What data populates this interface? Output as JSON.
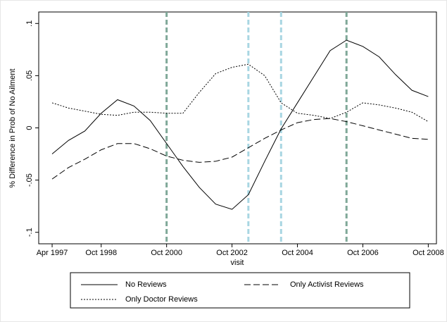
{
  "chart_data": {
    "type": "line",
    "x_label": "visit",
    "y_label": "% Difference in Prob of No Ailment",
    "xlim": [
      1996.84,
      2009.0
    ],
    "ylim": [
      -0.111,
      0.111
    ],
    "xticks": [
      {
        "value": 1997.25,
        "label": "Apr 1997"
      },
      {
        "value": 1998.75,
        "label": "Oct 1998"
      },
      {
        "value": 2000.75,
        "label": "Oct 2000"
      },
      {
        "value": 2002.75,
        "label": "Oct 2002"
      },
      {
        "value": 2004.75,
        "label": "Oct 2004"
      },
      {
        "value": 2006.75,
        "label": "Oct 2006"
      },
      {
        "value": 2008.75,
        "label": "Oct 2008"
      }
    ],
    "yticks": [
      {
        "value": -0.1,
        "label": "-.1"
      },
      {
        "value": -0.05,
        "label": "-.05"
      },
      0,
      {
        "value": 0.05,
        "label": ".05"
      },
      {
        "value": 0.1,
        "label": ".1"
      }
    ],
    "vlines": [
      {
        "x": 2000.75,
        "color": "#7fa898"
      },
      {
        "x": 2003.25,
        "color": "#a8d6e2"
      },
      {
        "x": 2004.25,
        "color": "#a8d6e2"
      },
      {
        "x": 2006.25,
        "color": "#7fa898"
      }
    ],
    "x": [
      1997.25,
      1997.75,
      1998.25,
      1998.75,
      1999.25,
      1999.75,
      2000.25,
      2000.75,
      2001.25,
      2001.75,
      2002.25,
      2002.75,
      2003.25,
      2003.75,
      2004.25,
      2004.75,
      2005.25,
      2005.75,
      2006.25,
      2006.75,
      2007.25,
      2007.75,
      2008.25,
      2008.75
    ],
    "series": [
      {
        "name": "No Reviews",
        "color": "#000000",
        "line_style": "solid",
        "values": [
          -0.025,
          -0.012,
          -0.003,
          0.014,
          0.027,
          0.021,
          0.007,
          -0.015,
          -0.037,
          -0.057,
          -0.073,
          -0.078,
          -0.064,
          -0.032,
          -0.001,
          0.024,
          0.049,
          0.074,
          0.084,
          0.078,
          0.068,
          0.051,
          0.036,
          0.03
        ]
      },
      {
        "name": "Only Activist Reviews",
        "color": "#000000",
        "line_style": "dashed",
        "values": [
          -0.049,
          -0.038,
          -0.03,
          -0.021,
          -0.015,
          -0.015,
          -0.02,
          -0.027,
          -0.031,
          -0.033,
          -0.032,
          -0.028,
          -0.019,
          -0.01,
          -0.002,
          0.005,
          0.008,
          0.009,
          0.006,
          0.002,
          -0.002,
          -0.006,
          -0.01,
          -0.011
        ]
      },
      {
        "name": "Only Doctor Reviews",
        "color": "#000000",
        "line_style": "dotted",
        "values": [
          0.024,
          0.019,
          0.016,
          0.013,
          0.012,
          0.015,
          0.015,
          0.014,
          0.014,
          0.034,
          0.052,
          0.058,
          0.061,
          0.05,
          0.024,
          0.014,
          0.012,
          0.009,
          0.015,
          0.024,
          0.022,
          0.019,
          0.015,
          0.006
        ]
      }
    ]
  }
}
